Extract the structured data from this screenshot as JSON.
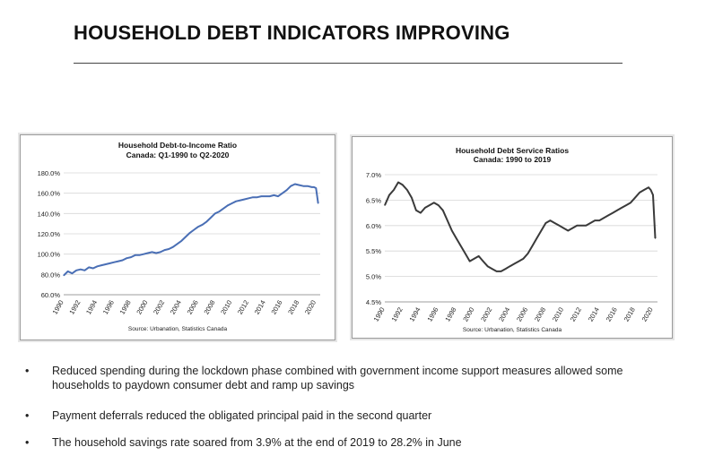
{
  "slide": {
    "title": "HOUSEHOLD DEBT INDICATORS IMPROVING"
  },
  "bullets": [
    {
      "marker": "•",
      "text": "Reduced spending during the lockdown phase combined with government income support measures allowed some households to paydown consumer debt and ramp up savings"
    },
    {
      "marker": "•",
      "text": "Payment deferrals reduced the obligated principal paid in the second quarter"
    },
    {
      "marker": "•",
      "text": "The household savings rate soared from 3.9% at the end of 2019 to 28.2% in June"
    }
  ],
  "chart_data": [
    {
      "type": "line",
      "title": "Household Debt-to-Income Ratio",
      "subtitle": "Canada: Q1-1990 to Q2-2020",
      "source": "Source: Urbanation, Statistics Canada",
      "ylim": [
        60,
        180
      ],
      "xlim": [
        1990,
        2020.5
      ],
      "yticks": [
        60,
        80,
        100,
        120,
        140,
        160,
        180
      ],
      "ytick_labels": [
        "60.0%",
        "80.0%",
        "100.0%",
        "120.0%",
        "140.0%",
        "160.0%",
        "180.0%"
      ],
      "xticks": [
        "1990",
        "1992",
        "1994",
        "1996",
        "1998",
        "2000",
        "2002",
        "2004",
        "2006",
        "2008",
        "2010",
        "2012",
        "2014",
        "2016",
        "2018",
        "2020"
      ],
      "grid": true,
      "color": "#4a6fb5",
      "x": [
        1990.0,
        1990.5,
        1991.0,
        1991.5,
        1992.0,
        1992.5,
        1993.0,
        1993.5,
        1994.0,
        1994.5,
        1995.0,
        1995.5,
        1996.0,
        1996.5,
        1997.0,
        1997.5,
        1998.0,
        1998.5,
        1999.0,
        1999.5,
        2000.0,
        2000.5,
        2001.0,
        2001.5,
        2002.0,
        2002.5,
        2003.0,
        2003.5,
        2004.0,
        2004.5,
        2005.0,
        2005.5,
        2006.0,
        2006.5,
        2007.0,
        2007.5,
        2008.0,
        2008.5,
        2009.0,
        2009.5,
        2010.0,
        2010.5,
        2011.0,
        2011.5,
        2012.0,
        2012.5,
        2013.0,
        2013.5,
        2014.0,
        2014.5,
        2015.0,
        2015.5,
        2016.0,
        2016.5,
        2017.0,
        2017.5,
        2018.0,
        2018.5,
        2019.0,
        2019.5,
        2019.75,
        2020.0,
        2020.25
      ],
      "values": [
        79,
        83,
        81,
        84,
        85,
        84,
        87,
        86,
        88,
        89,
        90,
        91,
        92,
        93,
        94,
        96,
        97,
        99,
        99,
        100,
        101,
        102,
        101,
        102,
        104,
        105,
        107,
        110,
        113,
        117,
        121,
        124,
        127,
        129,
        132,
        136,
        140,
        142,
        145,
        148,
        150,
        152,
        153,
        154,
        155,
        156,
        156,
        157,
        157,
        157,
        158,
        157,
        160,
        163,
        167,
        169,
        168,
        167,
        167,
        166,
        166,
        165,
        150
      ]
    },
    {
      "type": "line",
      "title": "Household Debt Service Ratios",
      "subtitle": "Canada: 1990 to 2019",
      "source": "Source: Urbanation, Statistics Canada",
      "ylim": [
        4.5,
        7.0
      ],
      "xlim": [
        1990,
        2020.5
      ],
      "yticks": [
        4.5,
        5.0,
        5.5,
        6.0,
        6.5,
        7.0
      ],
      "ytick_labels": [
        "4.5%",
        "5.0%",
        "5.5%",
        "6.0%",
        "6.5%",
        "7.0%"
      ],
      "xticks": [
        "1990",
        "1992",
        "1994",
        "1996",
        "1998",
        "2000",
        "2002",
        "2004",
        "2006",
        "2008",
        "2010",
        "2012",
        "2014",
        "2016",
        "2018",
        "2020"
      ],
      "grid": true,
      "color": "#3a3a3a",
      "x": [
        1990.0,
        1990.5,
        1991.0,
        1991.5,
        1992.0,
        1992.5,
        1993.0,
        1993.5,
        1994.0,
        1994.5,
        1995.0,
        1995.5,
        1996.0,
        1996.5,
        1997.0,
        1997.5,
        1998.0,
        1998.5,
        1999.0,
        1999.5,
        2000.0,
        2000.5,
        2001.0,
        2001.5,
        2002.0,
        2002.5,
        2003.0,
        2003.5,
        2004.0,
        2004.5,
        2005.0,
        2005.5,
        2006.0,
        2006.5,
        2007.0,
        2007.5,
        2008.0,
        2008.5,
        2009.0,
        2009.5,
        2010.0,
        2010.5,
        2011.0,
        2011.5,
        2012.0,
        2012.5,
        2013.0,
        2013.5,
        2014.0,
        2014.5,
        2015.0,
        2015.5,
        2016.0,
        2016.5,
        2017.0,
        2017.5,
        2018.0,
        2018.5,
        2019.0,
        2019.5,
        2019.75,
        2020.0,
        2020.25
      ],
      "values": [
        6.4,
        6.6,
        6.7,
        6.85,
        6.8,
        6.7,
        6.55,
        6.3,
        6.25,
        6.35,
        6.4,
        6.45,
        6.4,
        6.3,
        6.1,
        5.9,
        5.75,
        5.6,
        5.45,
        5.3,
        5.35,
        5.4,
        5.3,
        5.2,
        5.15,
        5.1,
        5.1,
        5.15,
        5.2,
        5.25,
        5.3,
        5.35,
        5.45,
        5.6,
        5.75,
        5.9,
        6.05,
        6.1,
        6.05,
        6.0,
        5.95,
        5.9,
        5.95,
        6.0,
        6.0,
        6.0,
        6.05,
        6.1,
        6.1,
        6.15,
        6.2,
        6.25,
        6.3,
        6.35,
        6.4,
        6.45,
        6.55,
        6.65,
        6.7,
        6.75,
        6.7,
        6.6,
        5.75
      ]
    }
  ]
}
